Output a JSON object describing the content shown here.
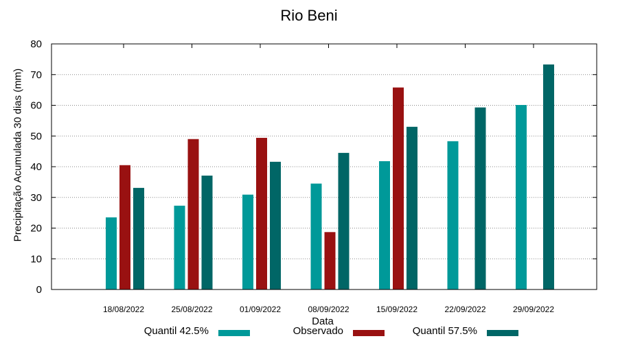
{
  "chart_data": {
    "type": "bar",
    "title": "Rio Beni",
    "xlabel": "Data",
    "ylabel": "Precipitação Acumulada 30 dias (mm)",
    "ylim": [
      0,
      80
    ],
    "yticks": [
      0,
      10,
      20,
      30,
      40,
      50,
      60,
      70,
      80
    ],
    "grid": true,
    "legend_position": "bottom",
    "categories": [
      "18/08/2022",
      "25/08/2022",
      "01/09/2022",
      "08/09/2022",
      "15/09/2022",
      "22/09/2022",
      "29/09/2022"
    ],
    "series": [
      {
        "name": "Quantil 42.5%",
        "color": "#009999",
        "values": [
          23.5,
          27.3,
          30.9,
          34.5,
          41.8,
          48.3,
          60.1
        ]
      },
      {
        "name": "Observado",
        "color": "#991111",
        "values": [
          40.5,
          49.0,
          49.4,
          18.7,
          65.8,
          null,
          null
        ]
      },
      {
        "name": "Quantil 57.5%",
        "color": "#006666",
        "values": [
          33.1,
          37.1,
          41.6,
          44.5,
          53.0,
          59.3,
          73.3
        ]
      }
    ]
  }
}
